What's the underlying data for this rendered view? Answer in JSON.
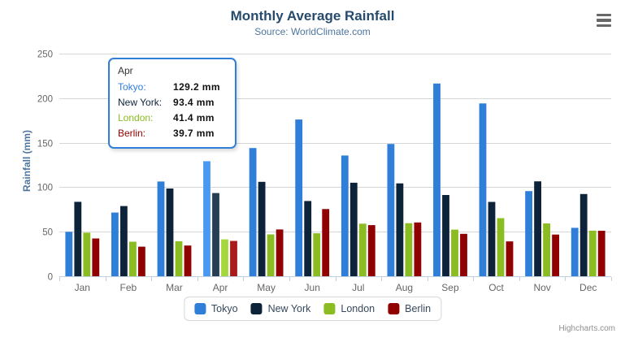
{
  "header": {
    "title": "Monthly Average Rainfall",
    "subtitle": "Source: WorldClimate.com"
  },
  "chart_data": {
    "type": "bar",
    "title": "Monthly Average Rainfall",
    "subtitle": "Source: WorldClimate.com",
    "xlabel": "",
    "ylabel": "Rainfall (mm)",
    "ylim": [
      0,
      250
    ],
    "yticks": [
      0,
      50,
      100,
      150,
      200,
      250
    ],
    "grid": true,
    "legend_position": "bottom",
    "categories": [
      "Jan",
      "Feb",
      "Mar",
      "Apr",
      "May",
      "Jun",
      "Jul",
      "Aug",
      "Sep",
      "Oct",
      "Nov",
      "Dec"
    ],
    "series": [
      {
        "name": "Tokyo",
        "color": "#2f7ed8",
        "hover_color": "#4998f2",
        "values": [
          49.9,
          71.5,
          106.4,
          129.2,
          144.0,
          176.0,
          135.6,
          148.5,
          216.4,
          194.1,
          95.6,
          54.4
        ]
      },
      {
        "name": "New York",
        "color": "#0d233a",
        "hover_color": "#273d54",
        "values": [
          83.6,
          78.8,
          98.5,
          93.4,
          106.0,
          84.5,
          105.0,
          104.3,
          91.2,
          83.5,
          106.6,
          92.3
        ]
      },
      {
        "name": "London",
        "color": "#8bbc21",
        "hover_color": "#a5d63b",
        "values": [
          48.9,
          38.8,
          39.3,
          41.4,
          47.0,
          48.3,
          59.0,
          59.6,
          52.4,
          65.2,
          59.3,
          51.2
        ]
      },
      {
        "name": "Berlin",
        "color": "#910000",
        "hover_color": "#ab1a1a",
        "values": [
          42.4,
          33.2,
          34.5,
          39.7,
          52.6,
          75.5,
          57.4,
          60.4,
          47.6,
          39.1,
          46.8,
          51.1
        ]
      }
    ],
    "hovered_category": "Apr"
  },
  "tooltip": {
    "header": "Apr",
    "border_color": "#2f7ed8",
    "rows": [
      {
        "label": "Tokyo:",
        "value": "129.2 mm",
        "color": "#2f7ed8"
      },
      {
        "label": "New York:",
        "value": "93.4 mm",
        "color": "#0d233a"
      },
      {
        "label": "London:",
        "value": "41.4 mm",
        "color": "#8bbc21"
      },
      {
        "label": "Berlin:",
        "value": "39.7 mm",
        "color": "#910000"
      }
    ]
  },
  "credits": {
    "label": "Highcharts.com"
  },
  "colors": {
    "title": "#274b6d",
    "subtitle": "#4d759e",
    "axis_labels": "#666666",
    "gridline": "#d6d6d6",
    "axis_line": "#c0d0e0",
    "credits": "#909090"
  }
}
